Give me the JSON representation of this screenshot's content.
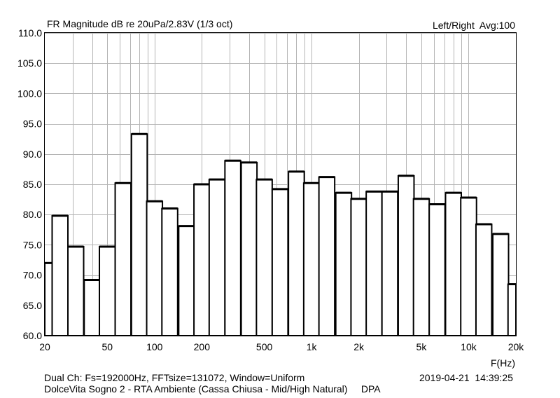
{
  "chart_data": {
    "type": "bar",
    "title": "FR Magnitude dB re 20uPa/2.83V (1/3 oct)",
    "top_right_label": "Left/Right  Avg:100",
    "xlabel": "F(Hz)",
    "ylabel": "",
    "x_scale": "log",
    "xlim": [
      20,
      20000
    ],
    "ylim": [
      60,
      110
    ],
    "grid": true,
    "x_tick_labels": [
      "20",
      "50",
      "100",
      "200",
      "500",
      "1k",
      "2k",
      "5k",
      "10k",
      "20k"
    ],
    "x_tick_values": [
      20,
      50,
      100,
      200,
      500,
      1000,
      2000,
      5000,
      10000,
      20000
    ],
    "y_tick_labels": [
      "60.0",
      "65.0",
      "70.0",
      "75.0",
      "80.0",
      "85.0",
      "90.0",
      "95.0",
      "100.0",
      "105.0",
      "110.0"
    ],
    "y_tick_values": [
      60,
      65,
      70,
      75,
      80,
      85,
      90,
      95,
      100,
      105,
      110
    ],
    "bars": [
      {
        "f": 20,
        "value": 72.0
      },
      {
        "f": 25,
        "value": 79.8
      },
      {
        "f": 31.5,
        "value": 74.7
      },
      {
        "f": 40,
        "value": 69.2
      },
      {
        "f": 50,
        "value": 74.7
      },
      {
        "f": 63,
        "value": 85.2
      },
      {
        "f": 80,
        "value": 93.3
      },
      {
        "f": 100,
        "value": 82.2
      },
      {
        "f": 125,
        "value": 81.0
      },
      {
        "f": 160,
        "value": 78.1
      },
      {
        "f": 200,
        "value": 85.0
      },
      {
        "f": 250,
        "value": 85.8
      },
      {
        "f": 315,
        "value": 88.9
      },
      {
        "f": 400,
        "value": 88.6
      },
      {
        "f": 500,
        "value": 85.8
      },
      {
        "f": 630,
        "value": 84.2
      },
      {
        "f": 800,
        "value": 87.1
      },
      {
        "f": 1000,
        "value": 85.2
      },
      {
        "f": 1250,
        "value": 86.2
      },
      {
        "f": 1600,
        "value": 83.6
      },
      {
        "f": 2000,
        "value": 82.6
      },
      {
        "f": 2500,
        "value": 83.8
      },
      {
        "f": 3150,
        "value": 83.8
      },
      {
        "f": 4000,
        "value": 86.4
      },
      {
        "f": 5000,
        "value": 82.6
      },
      {
        "f": 6300,
        "value": 81.7
      },
      {
        "f": 8000,
        "value": 83.6
      },
      {
        "f": 10000,
        "value": 82.8
      },
      {
        "f": 12500,
        "value": 78.4
      },
      {
        "f": 16000,
        "value": 76.8
      },
      {
        "f": 20000,
        "value": 68.5
      }
    ],
    "bar_color": "#ffffff",
    "bar_outline_color": "#000000",
    "grid_color": "#b4b4b4"
  },
  "footer": {
    "line1": "Dual Ch: Fs=192000Hz, FFTsize=131072, Window=Uniform",
    "line2": "DolceVita Sogno 2 - RTA Ambiente (Cassa Chiusa - Mid/High Natural)     DPA",
    "datetime": "2019-04-21  14:39:25"
  }
}
